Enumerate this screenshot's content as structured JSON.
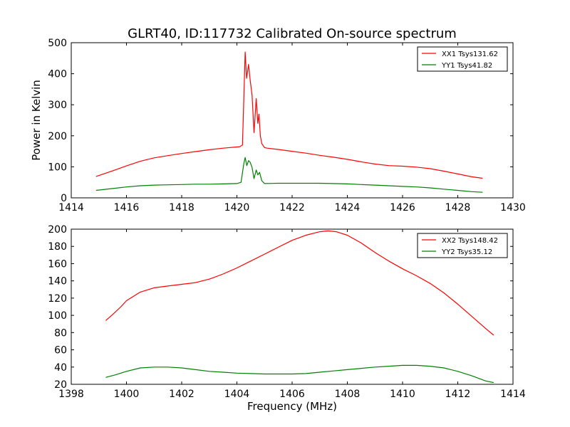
{
  "figure": {
    "title": "GLRT40, ID:117732 Calibrated On-source spectrum",
    "xlabel": "Frequency (MHz)",
    "ylabel": "Power in Kelvin"
  },
  "chart_data": [
    {
      "type": "line",
      "xlim": [
        1414,
        1430
      ],
      "ylim": [
        0,
        500
      ],
      "xticks": [
        "1414",
        "1416",
        "1418",
        "1420",
        "1422",
        "1424",
        "1426",
        "1428",
        "1430"
      ],
      "yticks": [
        "0",
        "100",
        "200",
        "300",
        "400",
        "500"
      ],
      "legend_position": "top-right",
      "grid": false,
      "series": [
        {
          "name": "XX1 Tsys131.62",
          "color": "#ff0000",
          "x": [
            1414.9,
            1415.5,
            1416.0,
            1416.5,
            1417.0,
            1417.5,
            1418.0,
            1418.5,
            1419.0,
            1419.5,
            1420.0,
            1420.1,
            1420.2,
            1420.3,
            1420.35,
            1420.42,
            1420.48,
            1420.55,
            1420.62,
            1420.7,
            1420.76,
            1420.8,
            1420.85,
            1420.9,
            1421.0,
            1421.1,
            1421.5,
            1422.0,
            1422.5,
            1423.0,
            1423.5,
            1424.0,
            1424.5,
            1425.0,
            1425.5,
            1426.0,
            1426.5,
            1427.0,
            1427.5,
            1428.0,
            1428.5,
            1428.9
          ],
          "y": [
            69,
            87,
            103,
            118,
            129,
            136,
            143,
            149,
            155,
            160,
            164,
            165,
            170,
            470,
            385,
            430,
            380,
            330,
            210,
            320,
            240,
            270,
            200,
            175,
            162,
            160,
            156,
            150,
            144,
            137,
            131,
            124,
            116,
            109,
            104,
            102,
            99,
            94,
            86,
            77,
            68,
            63
          ]
        },
        {
          "name": "YY1 Tsys41.82",
          "color": "#008000",
          "x": [
            1414.9,
            1415.5,
            1416.0,
            1416.5,
            1417.0,
            1417.5,
            1418.0,
            1418.5,
            1419.0,
            1419.5,
            1420.0,
            1420.15,
            1420.25,
            1420.3,
            1420.36,
            1420.42,
            1420.48,
            1420.55,
            1420.62,
            1420.7,
            1420.76,
            1420.82,
            1420.9,
            1421.0,
            1421.5,
            1422.0,
            1422.5,
            1423.0,
            1423.5,
            1424.0,
            1424.5,
            1425.0,
            1425.5,
            1426.0,
            1426.5,
            1427.0,
            1427.5,
            1428.0,
            1428.5,
            1428.9
          ],
          "y": [
            24,
            30,
            35,
            39,
            41,
            42,
            43,
            44,
            44,
            45,
            46,
            50,
            110,
            130,
            104,
            120,
            115,
            98,
            62,
            90,
            74,
            82,
            55,
            46,
            47,
            47,
            47,
            47,
            46,
            45,
            43,
            41,
            39,
            37,
            35,
            32,
            28,
            24,
            20,
            18
          ]
        }
      ]
    },
    {
      "type": "line",
      "xlim": [
        1398,
        1414
      ],
      "ylim": [
        20,
        200
      ],
      "xticks": [
        "1398",
        "1400",
        "1402",
        "1404",
        "1406",
        "1408",
        "1410",
        "1412",
        "1414"
      ],
      "yticks": [
        "20",
        "40",
        "60",
        "80",
        "100",
        "120",
        "140",
        "160",
        "180",
        "200"
      ],
      "legend_position": "top-right",
      "grid": false,
      "series": [
        {
          "name": "XX2 Tsys148.42",
          "color": "#ff0000",
          "x": [
            1399.25,
            1399.5,
            1399.8,
            1400.0,
            1400.5,
            1401.0,
            1401.5,
            1402.0,
            1402.5,
            1403.0,
            1403.5,
            1404.0,
            1404.5,
            1405.0,
            1405.5,
            1406.0,
            1406.5,
            1407.0,
            1407.3,
            1407.6,
            1408.0,
            1408.5,
            1409.0,
            1409.5,
            1410.0,
            1410.5,
            1411.0,
            1411.5,
            1412.0,
            1412.5,
            1413.0,
            1413.3
          ],
          "y": [
            94,
            101,
            110,
            117,
            127,
            132,
            134,
            136,
            138,
            142,
            148,
            155,
            163,
            171,
            179,
            187,
            193,
            197,
            198,
            197,
            193,
            184,
            173,
            163,
            154,
            146,
            137,
            126,
            113,
            99,
            85,
            77
          ]
        },
        {
          "name": "YY2 Tsys35.12",
          "color": "#008000",
          "x": [
            1399.25,
            1399.6,
            1400.0,
            1400.5,
            1401.0,
            1401.5,
            1402.0,
            1402.5,
            1403.0,
            1403.5,
            1404.0,
            1404.5,
            1405.0,
            1405.5,
            1406.0,
            1406.5,
            1407.0,
            1407.5,
            1408.0,
            1408.5,
            1409.0,
            1409.5,
            1410.0,
            1410.5,
            1411.0,
            1411.5,
            1412.0,
            1412.5,
            1413.0,
            1413.3
          ],
          "y": [
            28,
            31,
            35,
            39,
            40,
            40,
            39,
            37,
            35,
            34,
            33,
            32.5,
            32,
            32,
            32,
            32.5,
            34,
            35.5,
            37,
            38.5,
            40,
            41,
            42,
            42,
            41,
            39,
            35,
            30,
            24,
            22
          ]
        }
      ]
    }
  ]
}
